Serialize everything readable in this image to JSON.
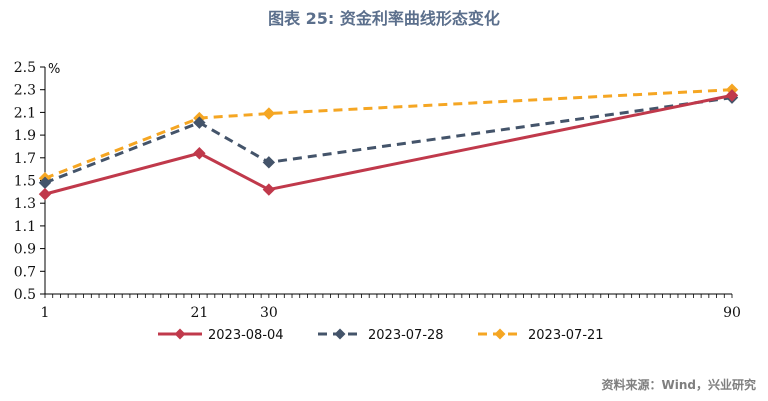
{
  "chart_data": {
    "type": "line",
    "title": "图表 25: 资金利率曲线形态变化",
    "ylabel": "%",
    "xlabel": "",
    "x": [
      1,
      21,
      30,
      90
    ],
    "xlim": [
      1,
      90
    ],
    "ylim": [
      0.5,
      2.5
    ],
    "yticks": [
      "0.5",
      "0.7",
      "0.9",
      "1.1",
      "1.3",
      "1.5",
      "1.7",
      "1.9",
      "2.1",
      "2.3",
      "2.5"
    ],
    "xticks": [
      "1",
      "21",
      "30",
      "90"
    ],
    "legend_position": "bottom",
    "series": [
      {
        "name": "2023-08-04",
        "values": [
          1.38,
          1.74,
          1.42,
          2.25
        ],
        "color": "#c0394b",
        "dash": "solid",
        "marker": "diamond"
      },
      {
        "name": "2023-07-28",
        "values": [
          1.48,
          2.01,
          1.66,
          2.23
        ],
        "color": "#44546a",
        "dash": "dashed",
        "marker": "diamond"
      },
      {
        "name": "2023-07-21",
        "values": [
          1.52,
          2.05,
          2.09,
          2.3
        ],
        "color": "#f5a623",
        "dash": "dashed",
        "marker": "diamond"
      }
    ]
  },
  "source": "资料来源：Wind，兴业研究"
}
